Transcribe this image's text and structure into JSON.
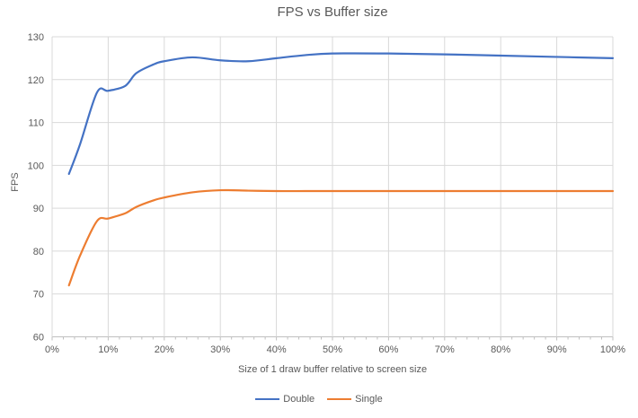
{
  "colors": {
    "text": "#595959",
    "gridline": "#D9D9D9",
    "axis": "#BFBFBF",
    "background": "#FFFFFF",
    "series_double": "#4472C4",
    "series_single": "#ED7D31"
  },
  "chart_data": {
    "type": "line",
    "title": "FPS vs Buffer size",
    "xlabel": "Size of 1 draw buffer relative to screen size",
    "ylabel": "FPS",
    "x_unit": "%",
    "xlim": [
      0,
      100
    ],
    "ylim": [
      60,
      130
    ],
    "x_ticks": [
      0,
      10,
      20,
      30,
      40,
      50,
      60,
      70,
      80,
      90,
      100
    ],
    "y_ticks": [
      60,
      70,
      80,
      90,
      100,
      110,
      120,
      130
    ],
    "x_minor_tick_step": 2,
    "grid": true,
    "smooth": true,
    "legend_position": "bottom",
    "x": [
      3,
      5,
      8,
      10,
      13,
      15,
      18,
      20,
      25,
      30,
      35,
      40,
      45,
      50,
      60,
      70,
      80,
      90,
      100
    ],
    "series": [
      {
        "name": "Double",
        "color": "#4472C4",
        "values": [
          98,
          105,
          117,
          117.4,
          118.5,
          121.5,
          123.5,
          124.3,
          125.2,
          124.5,
          124.3,
          125,
          125.7,
          126.1,
          126.1,
          125.9,
          125.6,
          125.3,
          125
        ]
      },
      {
        "name": "Single",
        "color": "#ED7D31",
        "values": [
          72,
          79,
          87,
          87.6,
          88.8,
          90.3,
          91.8,
          92.5,
          93.7,
          94.2,
          94.1,
          94,
          94,
          94,
          94,
          94,
          94,
          94,
          94
        ]
      }
    ]
  }
}
